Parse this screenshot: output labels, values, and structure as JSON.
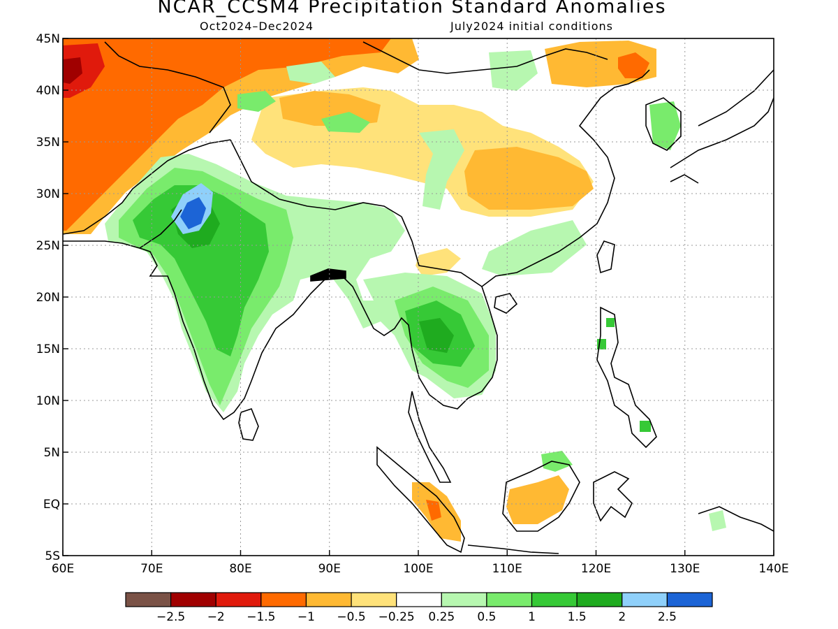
{
  "header": {
    "title": "NCAR_CCSM4 Precipitation Standard Anomalies",
    "period": "Oct2024–Dec2024",
    "initial_conditions": "July2024 initial conditions"
  },
  "axes": {
    "lon_labels": [
      "60E",
      "70E",
      "80E",
      "90E",
      "100E",
      "110E",
      "120E",
      "130E",
      "140E"
    ],
    "lat_labels": [
      "45N",
      "40N",
      "35N",
      "30N",
      "25N",
      "20N",
      "15N",
      "10N",
      "5N",
      "EQ",
      "5S"
    ],
    "lon_range": [
      60,
      140
    ],
    "lat_range": [
      -5,
      45
    ],
    "grid": "dotted"
  },
  "colorbar": {
    "colors": [
      "#7a5246",
      "#a00000",
      "#e01a0c",
      "#ff6a00",
      "#ffb933",
      "#ffe27a",
      "#ffffff",
      "#b7f7b0",
      "#79eb6c",
      "#36c936",
      "#1fab1f",
      "#8fd0fa",
      "#1c64d6"
    ],
    "labels": [
      "−2.5",
      "−2",
      "−1.5",
      "−1",
      "−0.5",
      "−0.25",
      "0.25",
      "0.5",
      "1",
      "1.5",
      "2",
      "2.5"
    ]
  },
  "anomaly_regions": [
    {
      "name": "northwest-dry",
      "level": "-1",
      "color": "#ff6a00"
    },
    {
      "name": "far-northwest-very-dry",
      "level": "-2",
      "color": "#e01a0c"
    },
    {
      "name": "india-wet",
      "level": "1.5",
      "color": "#36c936"
    },
    {
      "name": "rajasthan-max",
      "level": "2.5",
      "color": "#1c64d6"
    },
    {
      "name": "indochina-wet",
      "level": "1.5",
      "color": "#36c936"
    },
    {
      "name": "china-dry",
      "level": "-0.5",
      "color": "#ffb933"
    },
    {
      "name": "borneo-dry",
      "level": "-0.5",
      "color": "#ffb933"
    },
    {
      "name": "sumatra-dry",
      "level": "-1",
      "color": "#ff6a00"
    }
  ]
}
